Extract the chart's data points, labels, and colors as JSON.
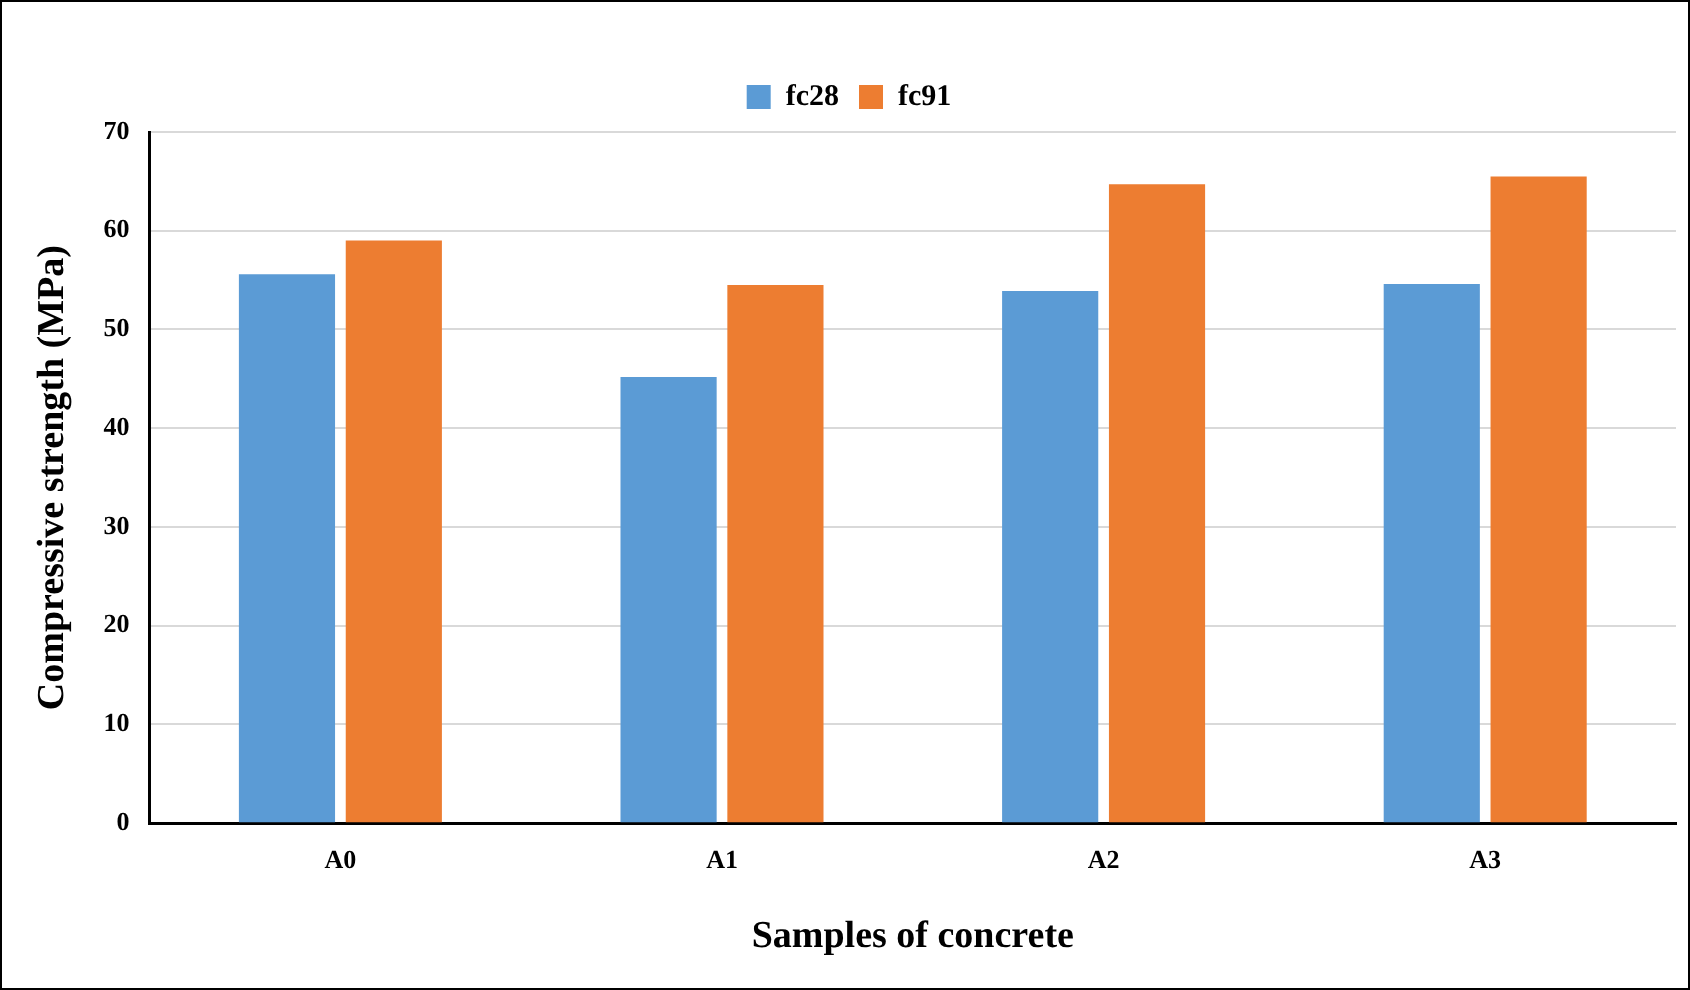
{
  "chart_data": {
    "type": "bar",
    "xlabel": "Samples of concrete",
    "ylabel": "Compressive strength (MPa)",
    "categories": [
      "A0",
      "A1",
      "A2",
      "A3"
    ],
    "series": [
      {
        "name": "fc28",
        "color": "#5b9bd5",
        "values": [
          55.6,
          45.2,
          53.9,
          54.6
        ]
      },
      {
        "name": "fc91",
        "color": "#ed7d31",
        "values": [
          59.0,
          54.5,
          64.7,
          65.5
        ]
      }
    ],
    "ylim": [
      0,
      70
    ],
    "yticks": [
      0,
      10,
      20,
      30,
      40,
      50,
      60,
      70
    ],
    "grid": "y",
    "legend": "top"
  }
}
